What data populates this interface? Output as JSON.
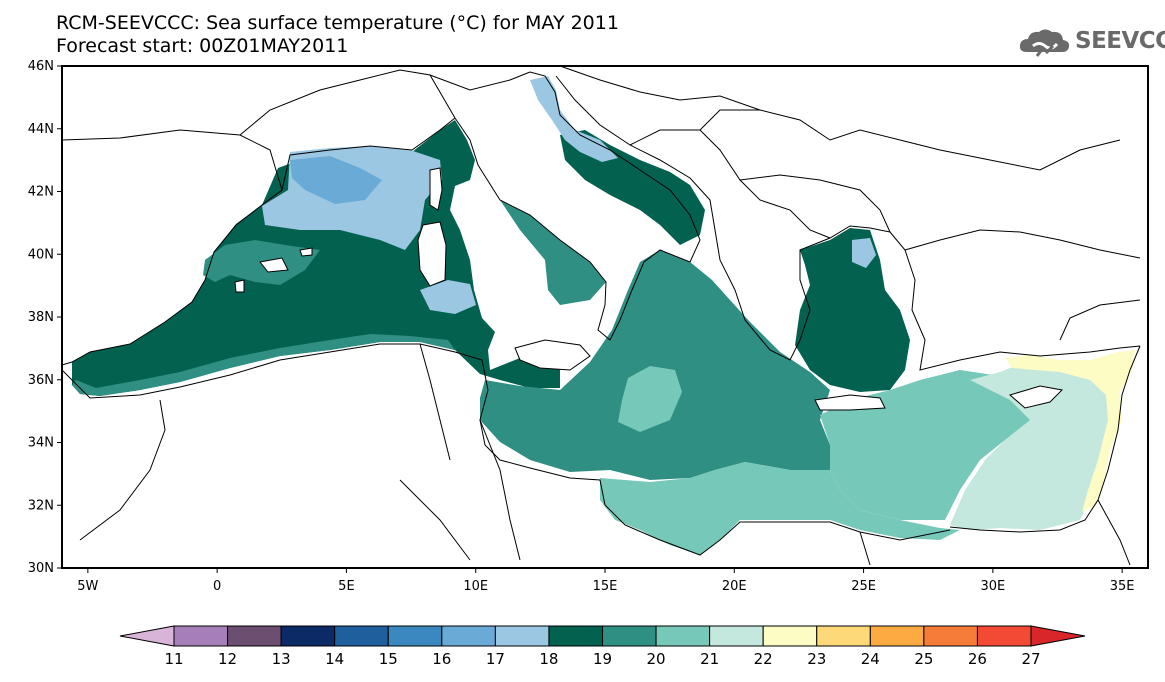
{
  "header": {
    "title": "RCM-SEEVCCC: Sea surface temperature (°C) for MAY 2011",
    "subtitle": "Forecast start: 00Z01MAY2011"
  },
  "logo": {
    "text": "SEEVCCC",
    "icon": "cloud-icon"
  },
  "map": {
    "lat_range": [
      30,
      46
    ],
    "lon_range": [
      -6,
      36
    ],
    "lat_ticks": [
      "46N",
      "44N",
      "42N",
      "40N",
      "38N",
      "36N",
      "34N",
      "32N",
      "30N"
    ],
    "lon_ticks": [
      "5W",
      "0",
      "5E",
      "10E",
      "15E",
      "20E",
      "25E",
      "30E",
      "35E"
    ],
    "colors": {
      "land": "#ffffff",
      "border": "#000000"
    }
  },
  "colorbar": {
    "labels": [
      "11",
      "12",
      "13",
      "14",
      "15",
      "16",
      "17",
      "18",
      "19",
      "20",
      "21",
      "22",
      "23",
      "24",
      "25",
      "26",
      "27"
    ],
    "colors": [
      "#d8b4d8",
      "#a67fb8",
      "#6b4e70",
      "#0c2a66",
      "#1f5f9e",
      "#3b88c0",
      "#6aaad6",
      "#9cc7e2",
      "#03614f",
      "#2e8f82",
      "#76c8b8",
      "#c4e8dd",
      "#fefcc5",
      "#fdd97a",
      "#fbab42",
      "#f67c3a",
      "#f24a35",
      "#d9262a"
    ]
  }
}
